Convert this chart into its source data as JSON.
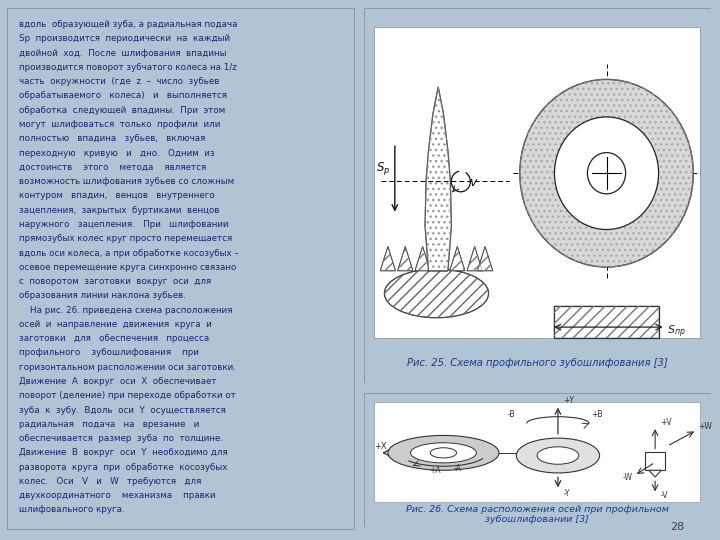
{
  "page_bg": "#b0c4d4",
  "text_panel_bg": "#dce8f0",
  "fig1_panel_bg": "#dce8f0",
  "fig2_panel_bg": "#dce8f0",
  "inner_fig_bg": "#ffffff",
  "text_color": "#1a237e",
  "caption_color": "#1a3a8f",
  "page_number": "28",
  "text_lines": [
    "вдоль  образующей зуба, а радиальная подача",
    "Sр  производится  периодически  на  каждый",
    "двойной  ход.  После  шлифования  впадины",
    "производится поворот зубчатого колеса на 1/z",
    "часть  окружности  (где  z  –  число  зубьев",
    "обрабатываемого   колеса)   и   выполняется",
    "обработка  следующей  впадины.  При  этом",
    "могут  шлифоваться  только  профили  или",
    "полностью   впадина   зубьев,   включая",
    "переходную   кривую   и   дно.   Одним  из",
    "достоинств    этого    метода    является",
    "возможность шлифования зубьев со сложным",
    "контуром   впадин,   венцов   внутреннего",
    "зацепления,  закрытых  буртиками  венцов",
    "наружного   зацепления.   При   шлифовании",
    "прямозубых колес круг просто перемещается",
    "вдоль оси колеса, а при обработке косозубых –",
    "осевое перемещение круга синхронно связано",
    "с  поворотом  заготовки  вокруг  оси  для",
    "образования линии наклона зубьев.",
    "    На рис. 26. приведена схема расположения",
    "осей  и  направление  движения  круга  и",
    "заготовки   для   обеспечения   процесса",
    "профильного    зубошлифования    при",
    "горизонтальном расположении оси заготовки.",
    "Движение  А  вокруг  оси  Х  обеспечивает",
    "поворот (деление) при переходе обработки от",
    "зуба  к  зубу.  Вдоль  оси  Y  осуществляется",
    "радиальная   подача   на   врезание   и",
    "обеспечивается  размер  зуба  по  толщине.",
    "Движение  В  вокруг  оси  Y  необходимо для",
    "разворота  круга  при  обработке  косозубых",
    "колес.   Оси   V   и   W   требуются   для",
    "двухкоординатного    механизма    правки",
    "шлифовального круга."
  ],
  "caption1": "Рис. 25. Схема профильного зубошлифования [3]",
  "caption2": "Рис. 26. Схема расположения осей при профильном\nзубошлифовании [3]"
}
